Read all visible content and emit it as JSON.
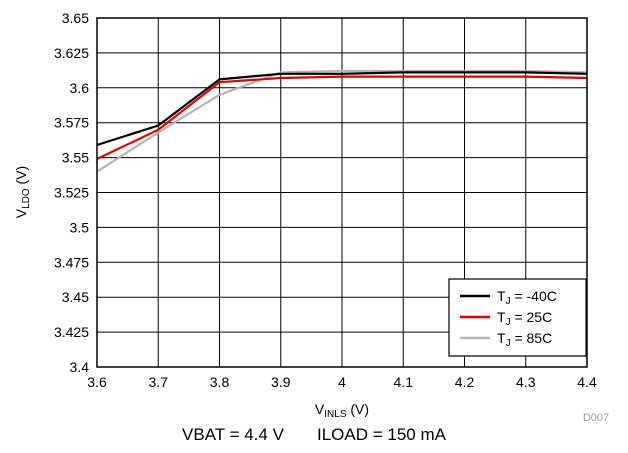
{
  "chart_data": {
    "type": "line",
    "title": "",
    "xlabel": {
      "main": "V",
      "sub": "INLS",
      "unit": " (V)"
    },
    "ylabel": {
      "main": "V",
      "sub": "LDO",
      "unit": " (V)"
    },
    "xlim": [
      3.6,
      4.4
    ],
    "ylim": [
      3.4,
      3.65
    ],
    "x_ticks": [
      "3.6",
      "3.7",
      "3.8",
      "3.9",
      "4",
      "4.1",
      "4.2",
      "4.3",
      "4.4"
    ],
    "y_ticks": [
      "3.65",
      "3.625",
      "3.6",
      "3.575",
      "3.55",
      "3.525",
      "3.5",
      "3.475",
      "3.45",
      "3.425",
      "3.4"
    ],
    "grid": true,
    "legend_position": "bottom-right",
    "series": [
      {
        "name": "-40C",
        "label_main": "T",
        "label_sub": "J",
        "label_rest": " = -40C",
        "color": "#000000",
        "x": [
          3.6,
          3.7,
          3.8,
          3.9,
          4.0,
          4.1,
          4.2,
          4.3,
          4.4
        ],
        "y": [
          3.559,
          3.573,
          3.606,
          3.61,
          3.61,
          3.611,
          3.611,
          3.611,
          3.61
        ]
      },
      {
        "name": "25C",
        "label_main": "T",
        "label_sub": "J",
        "label_rest": " = 25C",
        "color": "#e00000",
        "x": [
          3.6,
          3.7,
          3.8,
          3.9,
          4.0,
          4.1,
          4.2,
          4.3,
          4.4
        ],
        "y": [
          3.549,
          3.57,
          3.604,
          3.607,
          3.608,
          3.608,
          3.608,
          3.608,
          3.607
        ]
      },
      {
        "name": "85C",
        "label_main": "T",
        "label_sub": "J",
        "label_rest": " = 85C",
        "color": "#b4b4b4",
        "x": [
          3.6,
          3.7,
          3.8,
          3.9,
          4.0,
          4.1,
          4.2,
          4.3,
          4.4
        ],
        "y": [
          3.54,
          3.568,
          3.595,
          3.611,
          3.612,
          3.612,
          3.612,
          3.612,
          3.611
        ]
      }
    ],
    "figure_id": "D007"
  },
  "caption": "VBAT = 4.4 V       ILOAD = 150 mA"
}
